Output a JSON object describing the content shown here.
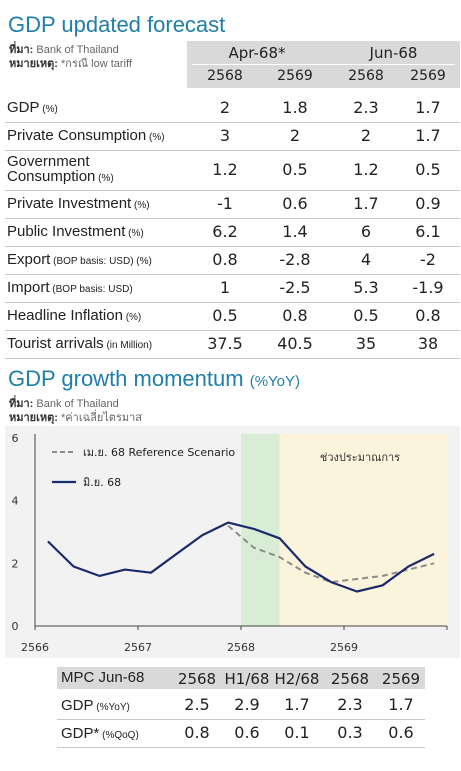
{
  "forecast": {
    "title": "GDP updated forecast",
    "source_label": "ที่มา:",
    "source": "Bank of Thailand",
    "note_label": "หมายเหตุ:",
    "note": "*กรณี low tariff",
    "groups": [
      "Apr-68*",
      "Jun-68"
    ],
    "years": [
      "2568",
      "2569",
      "2568",
      "2569"
    ],
    "rows": [
      {
        "label": "GDP",
        "unit": "(%)",
        "values": [
          "2",
          "1.8",
          "2.3",
          "1.7"
        ]
      },
      {
        "label": "Private Consumption",
        "unit": "(%)",
        "values": [
          "3",
          "2",
          "2",
          "1.7"
        ]
      },
      {
        "label": "Government",
        "label2": "Consumption",
        "unit": "(%)",
        "values": [
          "1.2",
          "0.5",
          "1.2",
          "0.5"
        ]
      },
      {
        "label": "Private Investment",
        "unit": "(%)",
        "values": [
          "-1",
          "0.6",
          "1.7",
          "0.9"
        ]
      },
      {
        "label": "Public Investment",
        "unit": "(%)",
        "values": [
          "6.2",
          "1.4",
          "6",
          "6.1"
        ]
      },
      {
        "label": "Export",
        "unit": "(BOP basis: USD) (%)",
        "values": [
          "0.8",
          "-2.8",
          "4",
          "-2"
        ]
      },
      {
        "label": "Import",
        "unit": "(BOP basis: USD)",
        "values": [
          "1",
          "-2.5",
          "5.3",
          "-1.9"
        ]
      },
      {
        "label": "Headline Inflation",
        "unit": "(%)",
        "values": [
          "0.5",
          "0.8",
          "0.5",
          "0.8"
        ]
      },
      {
        "label": "Tourist arrivals",
        "unit": "(in Million)",
        "values": [
          "37.5",
          "40.5",
          "35",
          "38"
        ]
      }
    ]
  },
  "momentum": {
    "title": "GDP growth momentum",
    "title_unit": "(%YoY)",
    "source_label": "ที่มา:",
    "source": "Bank of Thailand",
    "note_label": "หมายเหตุ:",
    "note": "*ค่าเฉลี่ยไตรมาส",
    "shade_label": "ช่วงประมาณการ",
    "colors": {
      "apr": "#8c8c8c",
      "jun": "#1a2b6b",
      "green_shade": "#d9ecd5",
      "forecast_shade": "#fbf3dc",
      "panel": "#f2f2f2"
    }
  },
  "chart_data": {
    "type": "line",
    "ylim": [
      0,
      6
    ],
    "yticks": [
      "0",
      "2",
      "4",
      "6"
    ],
    "xticks": [
      "2566",
      "2567",
      "2568",
      "2569"
    ],
    "x": [
      0.5,
      1.5,
      2.5,
      3.5,
      4.5,
      5.5,
      6.5,
      7.5,
      8.5,
      9.5,
      10.5,
      11.5,
      12.5,
      13.5,
      14.5,
      15.5
    ],
    "series": [
      {
        "name": "เม.ย. 68 Reference Scenario",
        "style": "dashed",
        "values": [
          null,
          null,
          null,
          null,
          null,
          null,
          null,
          3.2,
          2.5,
          2.2,
          1.7,
          1.4,
          1.5,
          1.6,
          1.8,
          2.0
        ]
      },
      {
        "name": "มิ.ย. 68",
        "style": "solid",
        "values": [
          2.7,
          1.9,
          1.6,
          1.8,
          1.7,
          2.3,
          2.9,
          3.3,
          3.1,
          2.8,
          1.9,
          1.4,
          1.1,
          1.3,
          1.9,
          2.3
        ]
      }
    ],
    "shaded": [
      {
        "from": 8,
        "to": 9.5,
        "kind": "green"
      },
      {
        "from": 9.5,
        "to": 16,
        "kind": "forecast"
      }
    ],
    "legend_position": "top-left"
  },
  "mpc": {
    "headers": [
      "MPC Jun-68",
      "2568",
      "H1/68",
      "H2/68",
      "2568",
      "2569"
    ],
    "rows": [
      {
        "label": "GDP",
        "unit": "(%YoY)",
        "values": [
          "2.5",
          "2.9",
          "1.7",
          "2.3",
          "1.7"
        ]
      },
      {
        "label": "GDP*",
        "unit": "(%QoQ)",
        "values": [
          "0.8",
          "0.6",
          "0.1",
          "0.3",
          "0.6"
        ]
      }
    ]
  }
}
